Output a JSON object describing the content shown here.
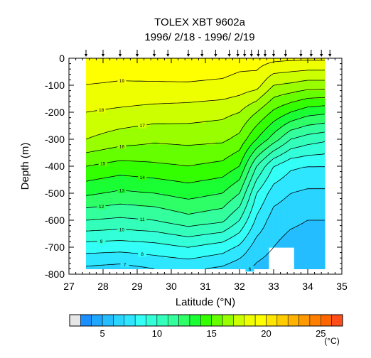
{
  "chart_data": {
    "type": "heatmap",
    "title": "TOLEX XBT 9602a",
    "subtitle": "1996/ 2/18 - 1996/ 2/19",
    "xlabel": "Latitude (°N)",
    "ylabel": "Depth (m)",
    "xlim": [
      27,
      35
    ],
    "ylim": [
      -800,
      0
    ],
    "x_ticks": [
      27,
      28,
      29,
      30,
      31,
      32,
      33,
      34,
      35
    ],
    "y_ticks": [
      0,
      -100,
      -200,
      -300,
      -400,
      -500,
      -600,
      -700,
      -800
    ],
    "x_tick_labels": [
      "27",
      "28",
      "29",
      "30",
      "31",
      "32",
      "33",
      "34",
      "35"
    ],
    "y_tick_labels": [
      "0",
      "-100",
      "-200",
      "-300",
      "-400",
      "-500",
      "-600",
      "-700",
      "-800"
    ],
    "cast_latitudes": [
      27.5,
      28.0,
      28.5,
      29.0,
      29.5,
      29.9,
      30.5,
      30.9,
      31.3,
      31.7,
      31.95,
      32.15,
      32.35,
      32.55,
      32.75,
      33.0,
      33.35,
      33.8,
      34.1,
      34.4,
      34.65
    ],
    "contour_levels": [
      6,
      7,
      8,
      9,
      10,
      11,
      12,
      13,
      14,
      15,
      16,
      17,
      18,
      19
    ],
    "contour_label_values": [
      "19",
      "18",
      "17",
      "16",
      "15",
      "14",
      "13",
      "12",
      "11",
      "10",
      "9",
      "8",
      "7",
      "6"
    ],
    "temperature_section": {
      "description_units": "temperature in °C",
      "latitudes": [
        27.5,
        28.5,
        29.5,
        30.5,
        31.5,
        32.0,
        32.5,
        33.0,
        33.5,
        34.0,
        34.5
      ],
      "depths": [
        0,
        -100,
        -200,
        -300,
        -400,
        -500,
        -600,
        -700,
        -780
      ],
      "values": [
        [
          19.5,
          19.5,
          19.6,
          19.7,
          19.6,
          19.4,
          19.5,
          19.3,
          19.2,
          19.2,
          19.2
        ],
        [
          19.0,
          18.9,
          18.9,
          18.9,
          18.8,
          18.6,
          18.4,
          17.0,
          16.8,
          16.5,
          16.5
        ],
        [
          18.0,
          17.8,
          17.6,
          17.5,
          17.3,
          17.0,
          16.0,
          14.8,
          14.0,
          13.4,
          13.2
        ],
        [
          17.0,
          16.5,
          16.2,
          16.3,
          16.2,
          15.7,
          14.0,
          12.5,
          11.0,
          10.5,
          10.2
        ],
        [
          15.0,
          14.6,
          14.8,
          15.0,
          14.7,
          14.0,
          11.0,
          9.0,
          8.2,
          8.0,
          8.0
        ],
        [
          13.2,
          12.8,
          13.0,
          13.4,
          13.0,
          12.0,
          9.0,
          7.5,
          7.0,
          6.8,
          6.8
        ],
        [
          11.0,
          10.8,
          11.0,
          11.6,
          11.2,
          10.0,
          7.8,
          6.5,
          6.2,
          6.0,
          6.0
        ],
        [
          8.5,
          8.4,
          8.6,
          9.0,
          8.5,
          7.8,
          6.5,
          6.0,
          5.6,
          5.5,
          5.5
        ],
        [
          6.8,
          6.6,
          7.0,
          7.2,
          6.8,
          6.3,
          5.8,
          5.5,
          5.2,
          5.2,
          5.2
        ]
      ]
    },
    "colorbar": {
      "labels": [
        "5",
        "10",
        "15",
        "20",
        "25"
      ],
      "label_values": [
        5,
        10,
        15,
        20,
        25
      ],
      "min": 2,
      "max": 27,
      "unit": "(°C)",
      "colors": [
        "#e6e6e6",
        "#1a8fff",
        "#1fa6ff",
        "#24bdff",
        "#29d4ff",
        "#2ee6ff",
        "#33fff7",
        "#33ffd9",
        "#33ffbb",
        "#33ff9d",
        "#2eff66",
        "#1aff33",
        "#33ff00",
        "#66ff00",
        "#99ff00",
        "#ccff00",
        "#eeff00",
        "#ffff00",
        "#ffe600",
        "#ffcc00",
        "#ffb300",
        "#ff9900",
        "#ff8000",
        "#ff6600",
        "#ff4d1a"
      ]
    }
  }
}
